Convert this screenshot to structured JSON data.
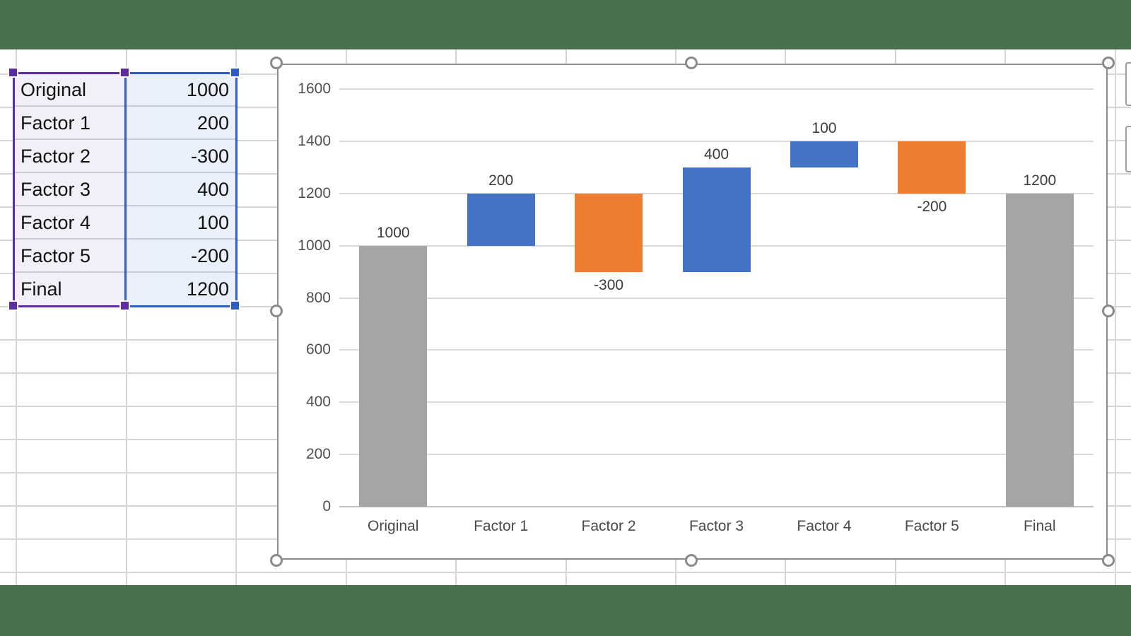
{
  "window": {
    "background_color": "#48714D"
  },
  "sheet": {
    "gridline_color": "#D6D6D6",
    "range_table": {
      "rows": [
        {
          "label": "Original",
          "value": "1000"
        },
        {
          "label": "Factor 1",
          "value": "200"
        },
        {
          "label": "Factor 2",
          "value": "-300"
        },
        {
          "label": "Factor 3",
          "value": "400"
        },
        {
          "label": "Factor 4",
          "value": "100"
        },
        {
          "label": "Factor 5",
          "value": "-200"
        },
        {
          "label": "Final",
          "value": "1200"
        }
      ],
      "label_range_border_color": "#5B2CA3",
      "label_range_fill": "#F3EFF8",
      "value_range_border_color": "#2E5CC5",
      "value_range_fill": "#E9F0FA"
    }
  },
  "chart_data": {
    "type": "bar",
    "subtype": "waterfall",
    "title": "",
    "categories": [
      "Original",
      "Factor 1",
      "Factor 2",
      "Factor 3",
      "Factor 4",
      "Factor 5",
      "Final"
    ],
    "values": [
      1000,
      200,
      -300,
      400,
      100,
      -200,
      1200
    ],
    "bar_kinds": [
      "total",
      "increase",
      "decrease",
      "increase",
      "increase",
      "decrease",
      "total"
    ],
    "segments": [
      [
        0,
        1000
      ],
      [
        1000,
        1200
      ],
      [
        900,
        1200
      ],
      [
        900,
        1300
      ],
      [
        1300,
        1400
      ],
      [
        1200,
        1400
      ],
      [
        0,
        1200
      ]
    ],
    "data_labels": [
      "1000",
      "200",
      "-300",
      "400",
      "100",
      "-200",
      "1200"
    ],
    "cumulative": [
      1000,
      1200,
      900,
      1300,
      1400,
      1200,
      1200
    ],
    "xlabel": "",
    "ylabel": "",
    "ylim": [
      0,
      1600
    ],
    "ytick_step": 200,
    "yticks": [
      0,
      200,
      400,
      600,
      800,
      1000,
      1200,
      1400,
      1600
    ],
    "grid": true,
    "legend": false,
    "colors": {
      "increase": "#4472C4",
      "decrease": "#ED7D31",
      "total": "#A5A5A5"
    },
    "gridline_color": "#DADADA",
    "axis_line_color": "#C0C0C0",
    "tick_label_color": "#4F4F4F",
    "data_label_color": "#3B3B3B"
  }
}
